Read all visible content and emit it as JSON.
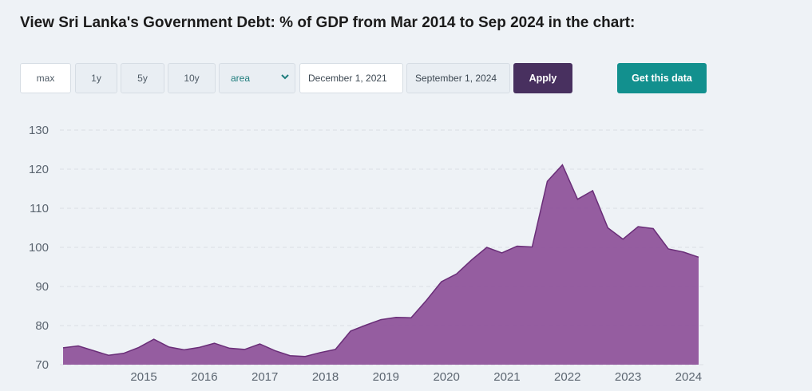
{
  "title": "View Sri Lanka's Government Debt: % of GDP from Mar 2014 to Sep 2024 in the chart:",
  "controls": {
    "range_buttons": [
      "max",
      "1y",
      "5y",
      "10y"
    ],
    "active_range": "max",
    "chart_type_select": "area",
    "date_from": "December 1, 2021",
    "date_to": "September 1, 2024",
    "apply_label": "Apply",
    "get_data_label": "Get this data"
  },
  "colors": {
    "area_fill": "#8b4d97",
    "area_line": "#6a2e78",
    "apply_bg": "#48305f",
    "get_data_bg": "#12908e",
    "grid": "#d9dee4"
  },
  "icons": {
    "select_arrow": "chevron-down-icon"
  },
  "chart_data": {
    "type": "area",
    "title": "",
    "xlabel": "",
    "ylabel": "",
    "ylim": [
      70,
      130
    ],
    "yticks": [
      70,
      80,
      90,
      100,
      110,
      120,
      130
    ],
    "xticks": [
      "2015",
      "2016",
      "2017",
      "2018",
      "2019",
      "2020",
      "2021",
      "2022",
      "2023",
      "2024"
    ],
    "grid": "horizontal dashed",
    "legend": "none",
    "series": [
      {
        "x": [
          "2014-03",
          "2014-06",
          "2014-09",
          "2014-12",
          "2015-03",
          "2015-06",
          "2015-09",
          "2015-12",
          "2016-03",
          "2016-06",
          "2016-09",
          "2016-12",
          "2017-03",
          "2017-06",
          "2017-09",
          "2017-12",
          "2018-03",
          "2018-06",
          "2018-09",
          "2018-12",
          "2019-03",
          "2019-06",
          "2019-09",
          "2019-12",
          "2020-03",
          "2020-06",
          "2020-09",
          "2020-12",
          "2021-03",
          "2021-06",
          "2021-09",
          "2021-12",
          "2022-03",
          "2022-06",
          "2022-09",
          "2022-12",
          "2023-03",
          "2023-06",
          "2023-09",
          "2023-12",
          "2024-03",
          "2024-06",
          "2024-09"
        ],
        "values": [
          74.3,
          74.8,
          73.6,
          72.4,
          72.9,
          74.4,
          76.5,
          74.5,
          73.8,
          74.4,
          75.5,
          74.2,
          73.9,
          75.3,
          73.6,
          72.3,
          72.1,
          73.1,
          73.9,
          78.6,
          80.1,
          81.5,
          82.1,
          82.0,
          86.4,
          91.2,
          93.2,
          96.8,
          100.0,
          98.6,
          100.3,
          100.1,
          116.9,
          121.1,
          112.3,
          114.5,
          105.0,
          102.1,
          105.3,
          104.8,
          99.6,
          98.8,
          97.5
        ]
      }
    ]
  }
}
